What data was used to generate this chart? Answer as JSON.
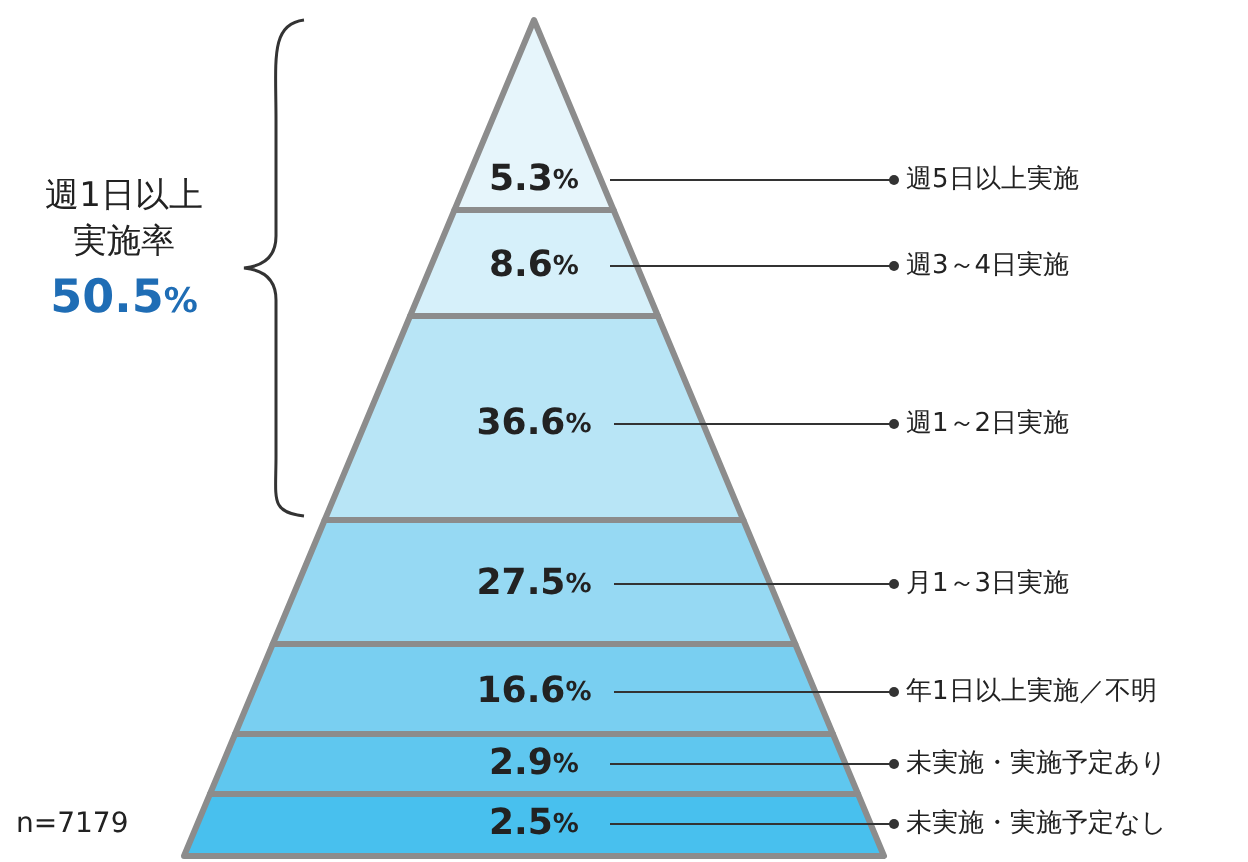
{
  "chart_data": {
    "type": "other",
    "categories": [
      "週5日以上実施",
      "週3～4日実施",
      "週1～2日実施",
      "月1～3日実施",
      "年1日以上実施／不明",
      "未実施・実施予定あり",
      "未実施・実施予定なし"
    ],
    "values": [
      5.3,
      8.6,
      36.6,
      27.5,
      16.6,
      2.9,
      2.5
    ],
    "value_labels": [
      "5.3%",
      "8.6%",
      "36.6%",
      "27.5%",
      "16.6%",
      "2.9%",
      "2.5%"
    ],
    "colors": [
      "#e6f5fb",
      "#d6f0fa",
      "#b8e5f6",
      "#96d9f3",
      "#79cff1",
      "#5fc7ef",
      "#48c0ee"
    ],
    "annotations": [
      "週1日以上",
      "実施率",
      "50.5%",
      "n=7179"
    ]
  }
}
